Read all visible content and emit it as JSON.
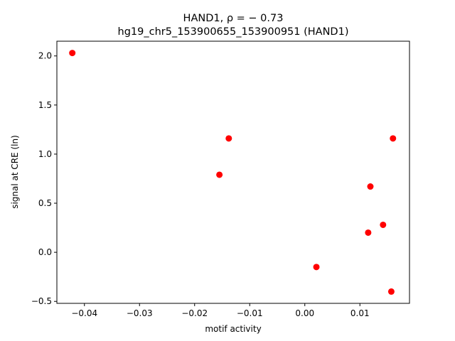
{
  "chart_data": {
    "type": "scatter",
    "title_line1": "HAND1, ρ = − 0.73",
    "title_line2": "hg19_chr5_153900655_153900951 (HAND1)",
    "xlabel": "motif activity",
    "ylabel": "signal at CRE (ln)",
    "xlim": [
      -0.045,
      0.019
    ],
    "ylim": [
      -0.52,
      2.15
    ],
    "xticks": [
      -0.04,
      -0.03,
      -0.02,
      -0.01,
      0.0,
      0.01
    ],
    "xtick_labels": [
      "−0.04",
      "−0.03",
      "−0.02",
      "−0.01",
      "0.00",
      "0.01"
    ],
    "yticks": [
      -0.5,
      0.0,
      0.5,
      1.0,
      1.5,
      2.0
    ],
    "ytick_labels": [
      "−0.5",
      "0.0",
      "0.5",
      "1.0",
      "1.5",
      "2.0"
    ],
    "grid": false,
    "marker_color": "#ff0000",
    "points": [
      {
        "x": -0.0422,
        "y": 2.03
      },
      {
        "x": -0.0138,
        "y": 1.16
      },
      {
        "x": -0.0155,
        "y": 0.79
      },
      {
        "x": 0.016,
        "y": 1.16
      },
      {
        "x": 0.0119,
        "y": 0.67
      },
      {
        "x": 0.0142,
        "y": 0.28
      },
      {
        "x": 0.0115,
        "y": 0.2
      },
      {
        "x": 0.0021,
        "y": -0.15
      },
      {
        "x": 0.0157,
        "y": -0.4
      }
    ]
  }
}
